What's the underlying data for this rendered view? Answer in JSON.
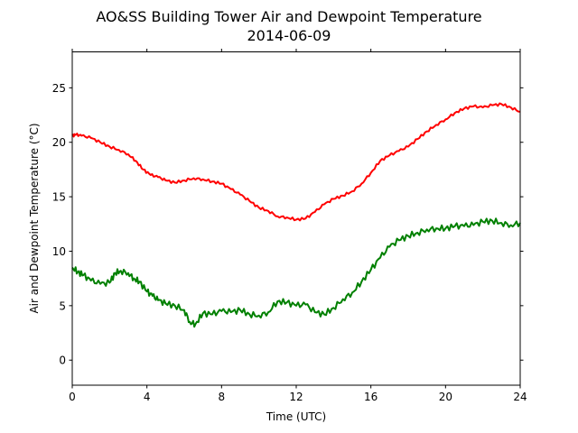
{
  "chart_data": {
    "type": "line",
    "title": "AO&SS Building Tower Air and Dewpoint Temperature",
    "subtitle": "2014-06-09",
    "xlabel": "Time (UTC)",
    "ylabel": "Air and Dewpoint Temperature (°C)",
    "xlim": [
      0,
      24
    ],
    "ylim": [
      -2.3,
      28.3
    ],
    "xticks": [
      0,
      4,
      8,
      12,
      16,
      20,
      24
    ],
    "yticks": [
      0,
      5,
      10,
      15,
      20,
      25
    ],
    "grid": false,
    "legend": "none",
    "series": [
      {
        "color": "#ff0000",
        "x": [
          0,
          0.2,
          0.5,
          1.0,
          1.5,
          2.0,
          2.5,
          3.0,
          3.4,
          3.8,
          4.2,
          4.6,
          5.0,
          5.5,
          6.0,
          6.5,
          7.0,
          7.5,
          8.0,
          8.5,
          9.0,
          9.5,
          10.0,
          10.5,
          11.0,
          11.5,
          12.0,
          12.5,
          13.0,
          13.5,
          14.0,
          14.5,
          15.0,
          15.5,
          16.0,
          16.5,
          17.0,
          17.5,
          18.0,
          18.5,
          19.0,
          19.5,
          20.0,
          20.5,
          21.0,
          21.5,
          22.0,
          22.5,
          23.0,
          23.5,
          24.0
        ],
        "y": [
          20.6,
          20.7,
          20.6,
          20.4,
          20.0,
          19.6,
          19.3,
          18.9,
          18.3,
          17.5,
          17.0,
          16.8,
          16.5,
          16.3,
          16.5,
          16.7,
          16.6,
          16.4,
          16.2,
          15.7,
          15.2,
          14.6,
          14.0,
          13.7,
          13.2,
          13.1,
          12.9,
          13.0,
          13.6,
          14.3,
          14.8,
          15.1,
          15.5,
          16.2,
          17.2,
          18.3,
          18.8,
          19.2,
          19.6,
          20.3,
          21.0,
          21.6,
          22.1,
          22.7,
          23.1,
          23.3,
          23.2,
          23.4,
          23.5,
          23.2,
          22.8
        ]
      },
      {
        "color": "#008000",
        "x": [
          0,
          0.3,
          0.6,
          1.0,
          1.5,
          2.0,
          2.3,
          2.6,
          3.0,
          3.3,
          3.6,
          4.0,
          4.3,
          4.6,
          5.0,
          5.5,
          6.0,
          6.3,
          6.6,
          7.0,
          7.5,
          8.0,
          8.5,
          9.0,
          9.5,
          10.0,
          10.5,
          11.0,
          11.5,
          12.0,
          12.5,
          13.0,
          13.5,
          14.0,
          14.5,
          15.0,
          15.5,
          16.0,
          16.5,
          17.0,
          17.5,
          18.0,
          18.5,
          19.0,
          19.5,
          20.0,
          20.5,
          21.0,
          21.5,
          22.0,
          22.5,
          23.0,
          23.5,
          24.0
        ],
        "y": [
          8.5,
          8.1,
          7.8,
          7.3,
          7.0,
          7.1,
          8.0,
          8.2,
          8.0,
          7.5,
          7.2,
          6.3,
          5.9,
          5.5,
          5.2,
          5.0,
          4.6,
          3.5,
          3.3,
          4.3,
          4.2,
          4.5,
          4.4,
          4.6,
          4.2,
          4.1,
          4.4,
          5.4,
          5.3,
          5.0,
          5.1,
          4.4,
          4.2,
          4.8,
          5.6,
          6.2,
          7.2,
          8.3,
          9.4,
          10.4,
          11.0,
          11.4,
          11.7,
          12.0,
          12.1,
          12.1,
          12.3,
          12.3,
          12.4,
          12.7,
          12.8,
          12.6,
          12.4,
          12.6
        ]
      }
    ]
  }
}
